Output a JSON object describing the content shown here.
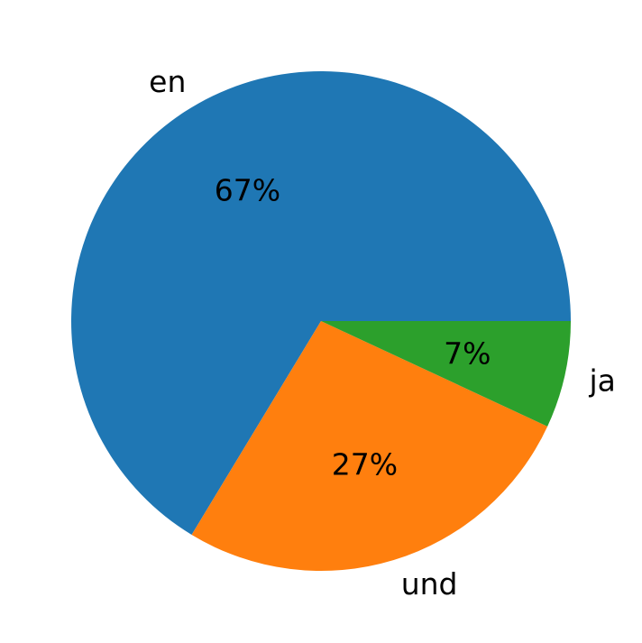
{
  "chart_data": {
    "type": "pie",
    "categories": [
      "en",
      "und",
      "ja"
    ],
    "values": [
      67,
      27,
      7
    ],
    "percent_labels": [
      "67%",
      "27%",
      "7%"
    ],
    "colors": [
      "#1f77b4",
      "#ff7f0e",
      "#2ca02c"
    ],
    "start_angle_deg": 0,
    "direction": "counterclockwise",
    "title": "",
    "legend": "none"
  }
}
